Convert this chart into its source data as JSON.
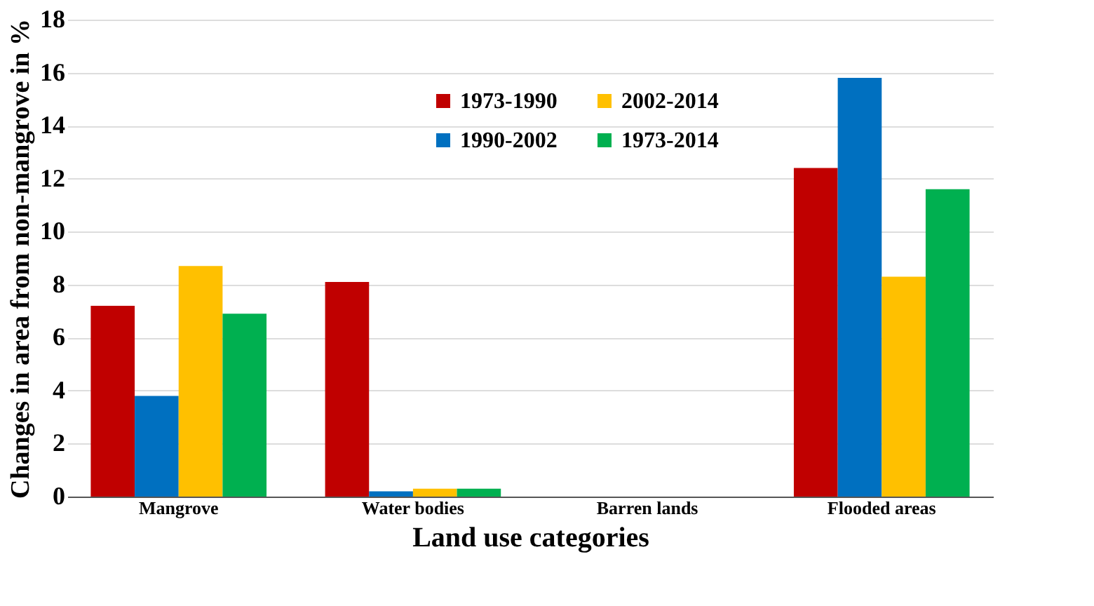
{
  "chart_data": {
    "type": "bar",
    "xlabel": "Land use categories",
    "ylabel": "Changes in area from non-mangrove in %",
    "categories": [
      "Mangrove",
      "Water bodies",
      "Barren lands",
      "Flooded areas"
    ],
    "series": [
      {
        "name": "1973-1990",
        "color": "#c00000",
        "values": [
          7.2,
          8.1,
          0,
          12.4
        ]
      },
      {
        "name": "1990-2002",
        "color": "#0070c0",
        "values": [
          3.8,
          0.2,
          0,
          15.8
        ]
      },
      {
        "name": "2002-2014",
        "color": "#ffc000",
        "values": [
          8.7,
          0.3,
          0,
          8.3
        ]
      },
      {
        "name": "1973-2014",
        "color": "#00b050",
        "values": [
          6.9,
          0.3,
          0,
          11.6
        ]
      }
    ],
    "ylim": [
      0,
      18
    ],
    "yticks": [
      0,
      2,
      4,
      6,
      8,
      10,
      12,
      14,
      16,
      18
    ],
    "grid": "y",
    "legend": "top"
  }
}
